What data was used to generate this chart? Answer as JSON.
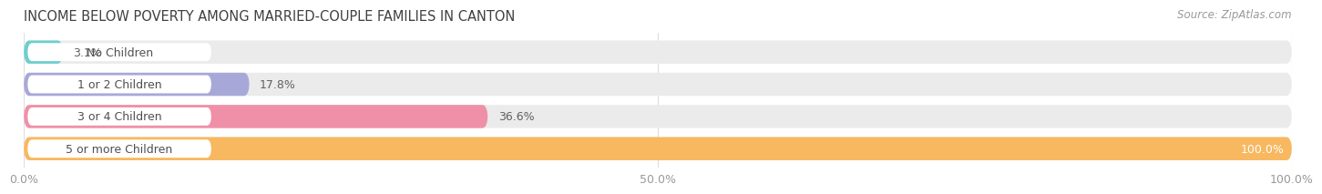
{
  "title": "INCOME BELOW POVERTY AMONG MARRIED-COUPLE FAMILIES IN CANTON",
  "source": "Source: ZipAtlas.com",
  "categories": [
    "No Children",
    "1 or 2 Children",
    "3 or 4 Children",
    "5 or more Children"
  ],
  "values": [
    3.1,
    17.8,
    36.6,
    100.0
  ],
  "bar_colors": [
    "#6dcece",
    "#a8a8d8",
    "#f090a8",
    "#f8b860"
  ],
  "bar_bg_color": "#ebebeb",
  "label_bg_color": "#ffffff",
  "xlim": [
    0,
    100
  ],
  "xticks": [
    0.0,
    50.0,
    100.0
  ],
  "xtick_labels": [
    "0.0%",
    "50.0%",
    "100.0%"
  ],
  "title_fontsize": 10.5,
  "source_fontsize": 8.5,
  "label_fontsize": 9,
  "value_fontsize": 9,
  "tick_fontsize": 9,
  "bar_height": 0.72,
  "background_color": "#ffffff",
  "title_color": "#404040",
  "tick_color": "#999999",
  "label_text_color": "#505050",
  "value_text_color_inside": "#ffffff",
  "value_text_color_outside": "#606060",
  "grid_color": "#dddddd"
}
